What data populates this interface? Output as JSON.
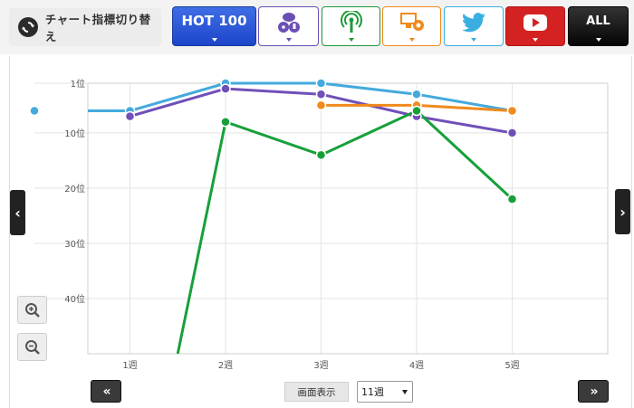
{
  "toolbar": {
    "switch_label": "チャート指標切り替え",
    "tabs": [
      {
        "name": "hot100",
        "label": "HOT 100",
        "color": "#1d45c9"
      },
      {
        "name": "sales",
        "icon": "cd-download-icon",
        "color": "#6a4fb5"
      },
      {
        "name": "radio",
        "icon": "radio-antenna-icon",
        "color": "#1e9a3a"
      },
      {
        "name": "lookup",
        "icon": "pc-lookup-icon",
        "color": "#f08a1c"
      },
      {
        "name": "twitter",
        "icon": "twitter-bird-icon",
        "color": "#3aaee0"
      },
      {
        "name": "youtube",
        "icon": "youtube-play-icon",
        "color": "#d42222"
      },
      {
        "name": "all",
        "label": "ALL",
        "color": "#111111"
      }
    ]
  },
  "chart_data": {
    "type": "line",
    "y_inverted": true,
    "ylim": [
      1,
      50
    ],
    "yticks": [
      1,
      10,
      20,
      30,
      40
    ],
    "ytick_labels": [
      "1位",
      "10位",
      "20位",
      "30位",
      "40位"
    ],
    "xlim": [
      0.0,
      6.0
    ],
    "x_categories": [
      "1週",
      "2週",
      "3週",
      "4週",
      "5週"
    ],
    "series": [
      {
        "key": "blue",
        "color": "#44aadd",
        "points": [
          [
            0.0,
            6
          ],
          [
            1.0,
            6
          ],
          [
            2.0,
            1
          ],
          [
            3.0,
            1
          ],
          [
            4.0,
            3
          ],
          [
            5.0,
            6
          ]
        ]
      },
      {
        "key": "purple",
        "color": "#7050b8",
        "points": [
          [
            1.0,
            7
          ],
          [
            2.0,
            2
          ],
          [
            3.0,
            3
          ],
          [
            4.0,
            7
          ],
          [
            5.0,
            10
          ]
        ]
      },
      {
        "key": "orange",
        "color": "#f08a1c",
        "points": [
          [
            3.0,
            5
          ],
          [
            4.0,
            5
          ],
          [
            5.0,
            6
          ]
        ]
      },
      {
        "key": "green",
        "color": "#17a03a",
        "points": [
          [
            1.5,
            50
          ],
          [
            2.0,
            8
          ],
          [
            3.0,
            14
          ],
          [
            4.0,
            6
          ],
          [
            5.0,
            22
          ]
        ]
      }
    ]
  },
  "controls": {
    "display_label": "画面表示",
    "weeks_selected": "11週",
    "prev_label": "«",
    "next_label": "»",
    "left_arrow": "‹",
    "right_arrow": "›"
  }
}
